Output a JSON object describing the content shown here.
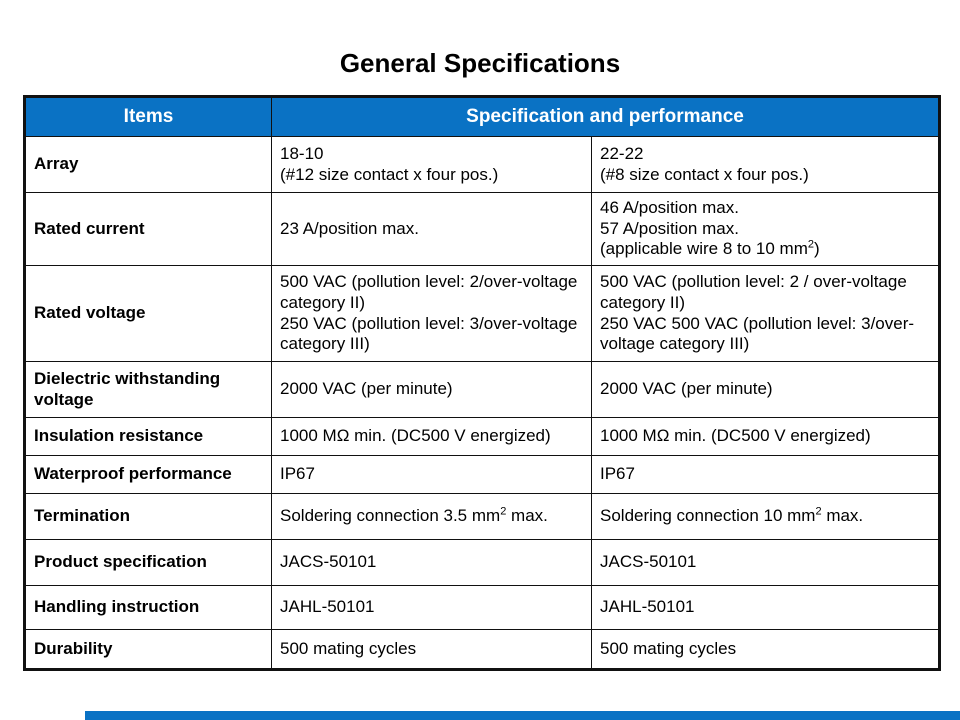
{
  "page": {
    "title": "General Specifications"
  },
  "colors": {
    "header_blue": "#0a72c4",
    "header_text": "#ffffff",
    "border": "#111111",
    "body_text": "#000000",
    "background": "#ffffff"
  },
  "table": {
    "header": {
      "items_label": "Items",
      "spec_label": "Specification and performance"
    },
    "rows": [
      {
        "item": "Array",
        "spec1": [
          "18-10",
          "(#12 size contact x four pos.)"
        ],
        "spec2": [
          "22-22",
          "(#8 size contact x four pos.)"
        ]
      },
      {
        "item": "Rated current",
        "spec1": [
          "23 A/position max."
        ],
        "spec2": [
          "46 A/position max.",
          "57 A/position max.",
          "(applicable wire 8 to 10 mm^2)"
        ]
      },
      {
        "item": "Rated voltage",
        "spec1": [
          "500 VAC (pollution level: 2/over-voltage category II)",
          "250 VAC (pollution level: 3/over-voltage category III)"
        ],
        "spec2": [
          "500 VAC (pollution level: 2 / over-voltage category II)",
          "250 VAC 500 VAC (pollution level: 3/over-voltage category III)"
        ]
      },
      {
        "item": "Dielectric withstanding voltage",
        "spec1": [
          "2000 VAC (per minute)"
        ],
        "spec2": [
          "2000 VAC (per minute)"
        ]
      },
      {
        "item": "Insulation resistance",
        "spec1": [
          "1000 MΩ min. (DC500 V energized)"
        ],
        "spec2": [
          "1000 MΩ min. (DC500 V energized)"
        ]
      },
      {
        "item": "Waterproof performance",
        "spec1": [
          "IP67"
        ],
        "spec2": [
          "IP67"
        ]
      },
      {
        "item": "Termination",
        "spec1": [
          "Soldering connection 3.5 mm^2 max."
        ],
        "spec2": [
          "Soldering connection 10 mm^2 max."
        ]
      },
      {
        "item": "Product specification",
        "spec1": [
          "JACS-50101"
        ],
        "spec2": [
          "JACS-50101"
        ]
      },
      {
        "item": "Handling instruction",
        "spec1": [
          "JAHL-50101"
        ],
        "spec2": [
          "JAHL-50101"
        ]
      },
      {
        "item": "Durability",
        "spec1": [
          "500 mating cycles"
        ],
        "spec2": [
          "500 mating cycles"
        ]
      }
    ]
  }
}
